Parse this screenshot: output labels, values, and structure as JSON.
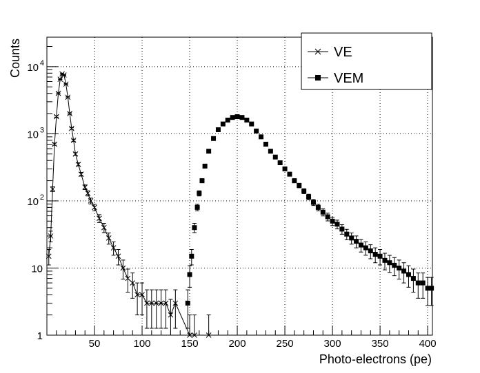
{
  "chart_data": {
    "type": "scatter",
    "title": "",
    "xlabel": "Photo-electrons (pe)",
    "ylabel": "Counts",
    "xlim": [
      0,
      405
    ],
    "ylim": [
      1,
      27500
    ],
    "yscale": "log",
    "grid": true,
    "legend_placement": "top-right",
    "xticks": [
      "50",
      "100",
      "150",
      "200",
      "250",
      "300",
      "350",
      "400"
    ],
    "xtick_values": [
      50,
      100,
      150,
      200,
      250,
      300,
      350,
      400
    ],
    "yticks": [
      {
        "value": 1,
        "base": "1",
        "exp": ""
      },
      {
        "value": 10,
        "base": "10",
        "exp": ""
      },
      {
        "value": 100,
        "base": "10",
        "exp": "2"
      },
      {
        "value": 1000,
        "base": "10",
        "exp": "3"
      },
      {
        "value": 10000,
        "base": "10",
        "exp": "4"
      }
    ],
    "series": [
      {
        "name": "VE",
        "marker": "cross",
        "line": true,
        "color": "#000000",
        "x": [
          2,
          4,
          6,
          8,
          10,
          12,
          14,
          16,
          18,
          20,
          22,
          24,
          26,
          28,
          30,
          33,
          36,
          40,
          43,
          46,
          50,
          55,
          60,
          65,
          70,
          75,
          80,
          85,
          90,
          95,
          100,
          105,
          110,
          115,
          120,
          125,
          130,
          135,
          150,
          155,
          170
        ],
        "y": [
          15,
          30,
          150,
          700,
          1800,
          4000,
          6500,
          7800,
          7500,
          5500,
          3500,
          2000,
          1200,
          800,
          500,
          350,
          250,
          160,
          130,
          100,
          80,
          55,
          40,
          28,
          20,
          15,
          10,
          7,
          6,
          4,
          4,
          3,
          3,
          3,
          3,
          3,
          2,
          3,
          1,
          1,
          1
        ]
      },
      {
        "name": "VEM",
        "marker": "square",
        "line": false,
        "color": "#000000",
        "x": [
          148,
          150,
          152,
          155,
          158,
          160,
          163,
          166,
          170,
          175,
          180,
          185,
          190,
          195,
          200,
          205,
          210,
          215,
          220,
          225,
          230,
          235,
          240,
          245,
          250,
          255,
          260,
          265,
          270,
          275,
          280,
          285,
          290,
          295,
          300,
          305,
          310,
          315,
          320,
          325,
          330,
          335,
          340,
          345,
          350,
          355,
          360,
          365,
          370,
          375,
          380,
          385,
          390,
          395,
          400,
          404
        ],
        "y": [
          3,
          8,
          15,
          40,
          80,
          130,
          200,
          330,
          550,
          850,
          1150,
          1400,
          1600,
          1750,
          1800,
          1750,
          1600,
          1400,
          1100,
          900,
          700,
          550,
          450,
          370,
          300,
          250,
          200,
          170,
          140,
          115,
          95,
          80,
          68,
          58,
          50,
          45,
          38,
          32,
          28,
          25,
          22,
          20,
          18,
          16,
          15,
          13,
          12,
          11,
          10,
          9,
          8,
          7,
          6,
          6,
          5,
          5
        ]
      }
    ]
  }
}
